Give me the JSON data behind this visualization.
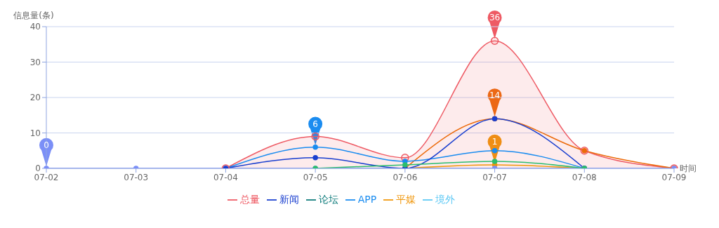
{
  "chart_data": {
    "type": "line",
    "ylabel": "信息量(条)",
    "xlabel": "时间",
    "categories": [
      "07-02",
      "07-03",
      "07-04",
      "07-05",
      "07-06",
      "07-07",
      "07-08",
      "07-09"
    ],
    "series": [
      {
        "name": "总量",
        "type": "area",
        "color": "#ee5a64",
        "values": [
          null,
          null,
          0,
          9,
          3,
          36,
          5,
          0
        ],
        "value_labels": [
          null,
          null,
          null,
          null,
          null,
          "36",
          null,
          null
        ]
      },
      {
        "name": "新闻",
        "color": "#1a3fcf",
        "values": [
          null,
          null,
          0,
          3,
          0,
          14,
          0,
          null
        ]
      },
      {
        "name": "论坛",
        "color": "#0b7a7a",
        "values": [
          null,
          null,
          null,
          null,
          null,
          null,
          null,
          null
        ]
      },
      {
        "color": "#ec6a0a",
        "values": [
          null,
          null,
          null,
          null,
          0,
          14,
          5,
          0
        ],
        "value_labels": [
          null,
          null,
          null,
          null,
          null,
          "14",
          null,
          null
        ]
      },
      {
        "color": "#2dbd6e",
        "values": [
          null,
          null,
          null,
          0,
          1,
          2,
          0,
          null
        ]
      },
      {
        "name": "APP",
        "color": "#1a8cf0",
        "values": [
          null,
          null,
          0,
          6,
          2,
          5,
          0,
          null
        ],
        "value_labels": [
          null,
          null,
          null,
          "6",
          null,
          null,
          null,
          null
        ]
      },
      {
        "name": "平媒",
        "color": "#f0960a",
        "values": [
          null,
          null,
          null,
          null,
          0,
          1,
          0,
          null
        ],
        "value_labels": [
          null,
          null,
          null,
          null,
          null,
          "1",
          null,
          null
        ]
      },
      {
        "name": "境外",
        "color": "#5bc8f5",
        "values": [
          null,
          null,
          null,
          null,
          null,
          null,
          null,
          null
        ]
      },
      {
        "color": "#7b8ff7",
        "values": [
          0,
          0,
          0,
          0,
          0,
          0,
          0,
          0
        ],
        "value_labels": [
          "0",
          null,
          null,
          null,
          null,
          null,
          null,
          null
        ]
      }
    ],
    "ylim": [
      0,
      40
    ],
    "yticks": [
      0,
      10,
      20,
      30,
      40
    ],
    "grid": "y",
    "legend": "bottom",
    "marker": "circle",
    "line_style": "solid"
  }
}
